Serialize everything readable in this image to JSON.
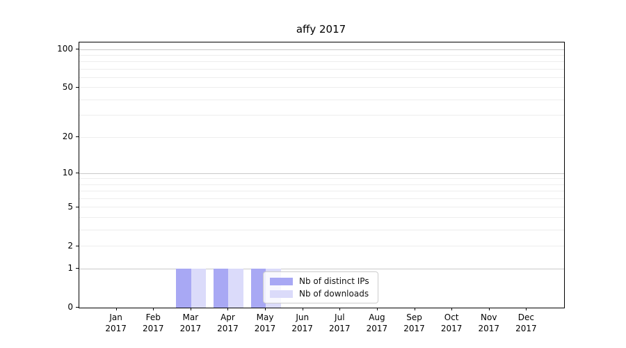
{
  "chart_data": {
    "type": "bar",
    "title": "affy 2017",
    "categories": [
      "Jan 2017",
      "Feb 2017",
      "Mar 2017",
      "Apr 2017",
      "May 2017",
      "Jun 2017",
      "Jul 2017",
      "Aug 2017",
      "Sep 2017",
      "Oct 2017",
      "Nov 2017",
      "Dec 2017"
    ],
    "series": [
      {
        "name": "Nb of distinct IPs",
        "color": "#a8a8f4",
        "values": [
          0,
          0,
          1,
          1,
          1,
          0,
          0,
          0,
          0,
          0,
          0,
          0
        ]
      },
      {
        "name": "Nb of downloads",
        "color": "#dbdbfa",
        "values": [
          0,
          0,
          1,
          1,
          1,
          0,
          0,
          0,
          0,
          0,
          0,
          0
        ]
      }
    ],
    "xlabel": "",
    "ylabel": "",
    "yscale": "log1p",
    "ylim": [
      0,
      113
    ],
    "yticks": [
      0,
      1,
      2,
      5,
      10,
      20,
      50,
      100
    ],
    "grid": {
      "on": true,
      "major": [
        1,
        10,
        100
      ],
      "minor": [
        2,
        3,
        4,
        5,
        6,
        7,
        8,
        9,
        20,
        30,
        40,
        50,
        60,
        70,
        80,
        90
      ]
    },
    "legend": {
      "position": "lower-center-overlay"
    },
    "colors": {
      "major_grid": "#c9c9c9",
      "minor_grid": "#ededed",
      "spine": "#000000"
    }
  }
}
